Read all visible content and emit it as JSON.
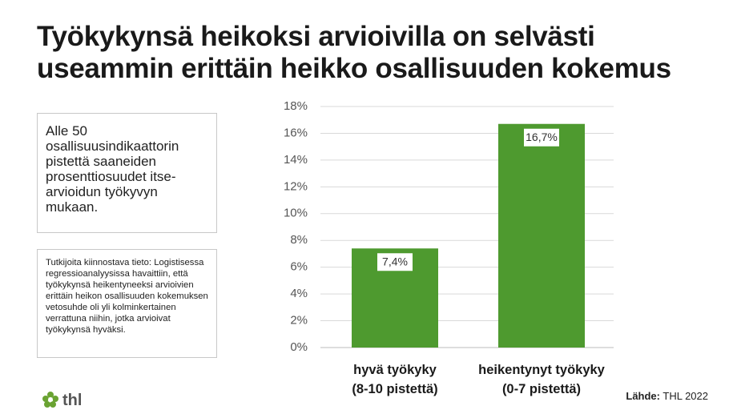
{
  "title": "Työkykynsä heikoksi arvioivilla on selvästi\nuseammin erittäin heikko osallisuuden kokemus",
  "box1": "Alle 50 osallisuusindikaattorin pistettä saaneiden prosenttiosuudet itse-arvioidun työkyvyn mukaan.",
  "box2": "Tutkijoita kiinnostava tieto: Logistisessa regressioanalyysissa havaittiin, että työkykynsä heikentyneeksi arvioivien erittäin heikon osallisuuden kokemuksen vetosuhde oli yli kolminkertainen verrattuna niihin, jotka arvioivat työkykynsä hyväksi.",
  "source": {
    "label": "Lähde:",
    "text": "THL 2022"
  },
  "logo": "thl",
  "chart_data": {
    "type": "bar",
    "categories": [
      "hyvä työkyky\n(8-10 pistettä)",
      "heikentynyt työkyky\n(0-7 pistettä)"
    ],
    "values": [
      7.4,
      16.7
    ],
    "value_labels": [
      "7,4%",
      "16,7%"
    ],
    "color": "#4e9a2f",
    "ylim": [
      0,
      18
    ],
    "yticks": [
      {
        "value": 0,
        "label": "0%"
      },
      {
        "value": 2,
        "label": "2%"
      },
      {
        "value": 4,
        "label": "4%"
      },
      {
        "value": 6,
        "label": "6%"
      },
      {
        "value": 8,
        "label": "8%"
      },
      {
        "value": 10,
        "label": "10%"
      },
      {
        "value": 12,
        "label": "12%"
      },
      {
        "value": 14,
        "label": "14%"
      },
      {
        "value": 16,
        "label": "16%"
      },
      {
        "value": 18,
        "label": "18%"
      }
    ],
    "grid": true
  }
}
